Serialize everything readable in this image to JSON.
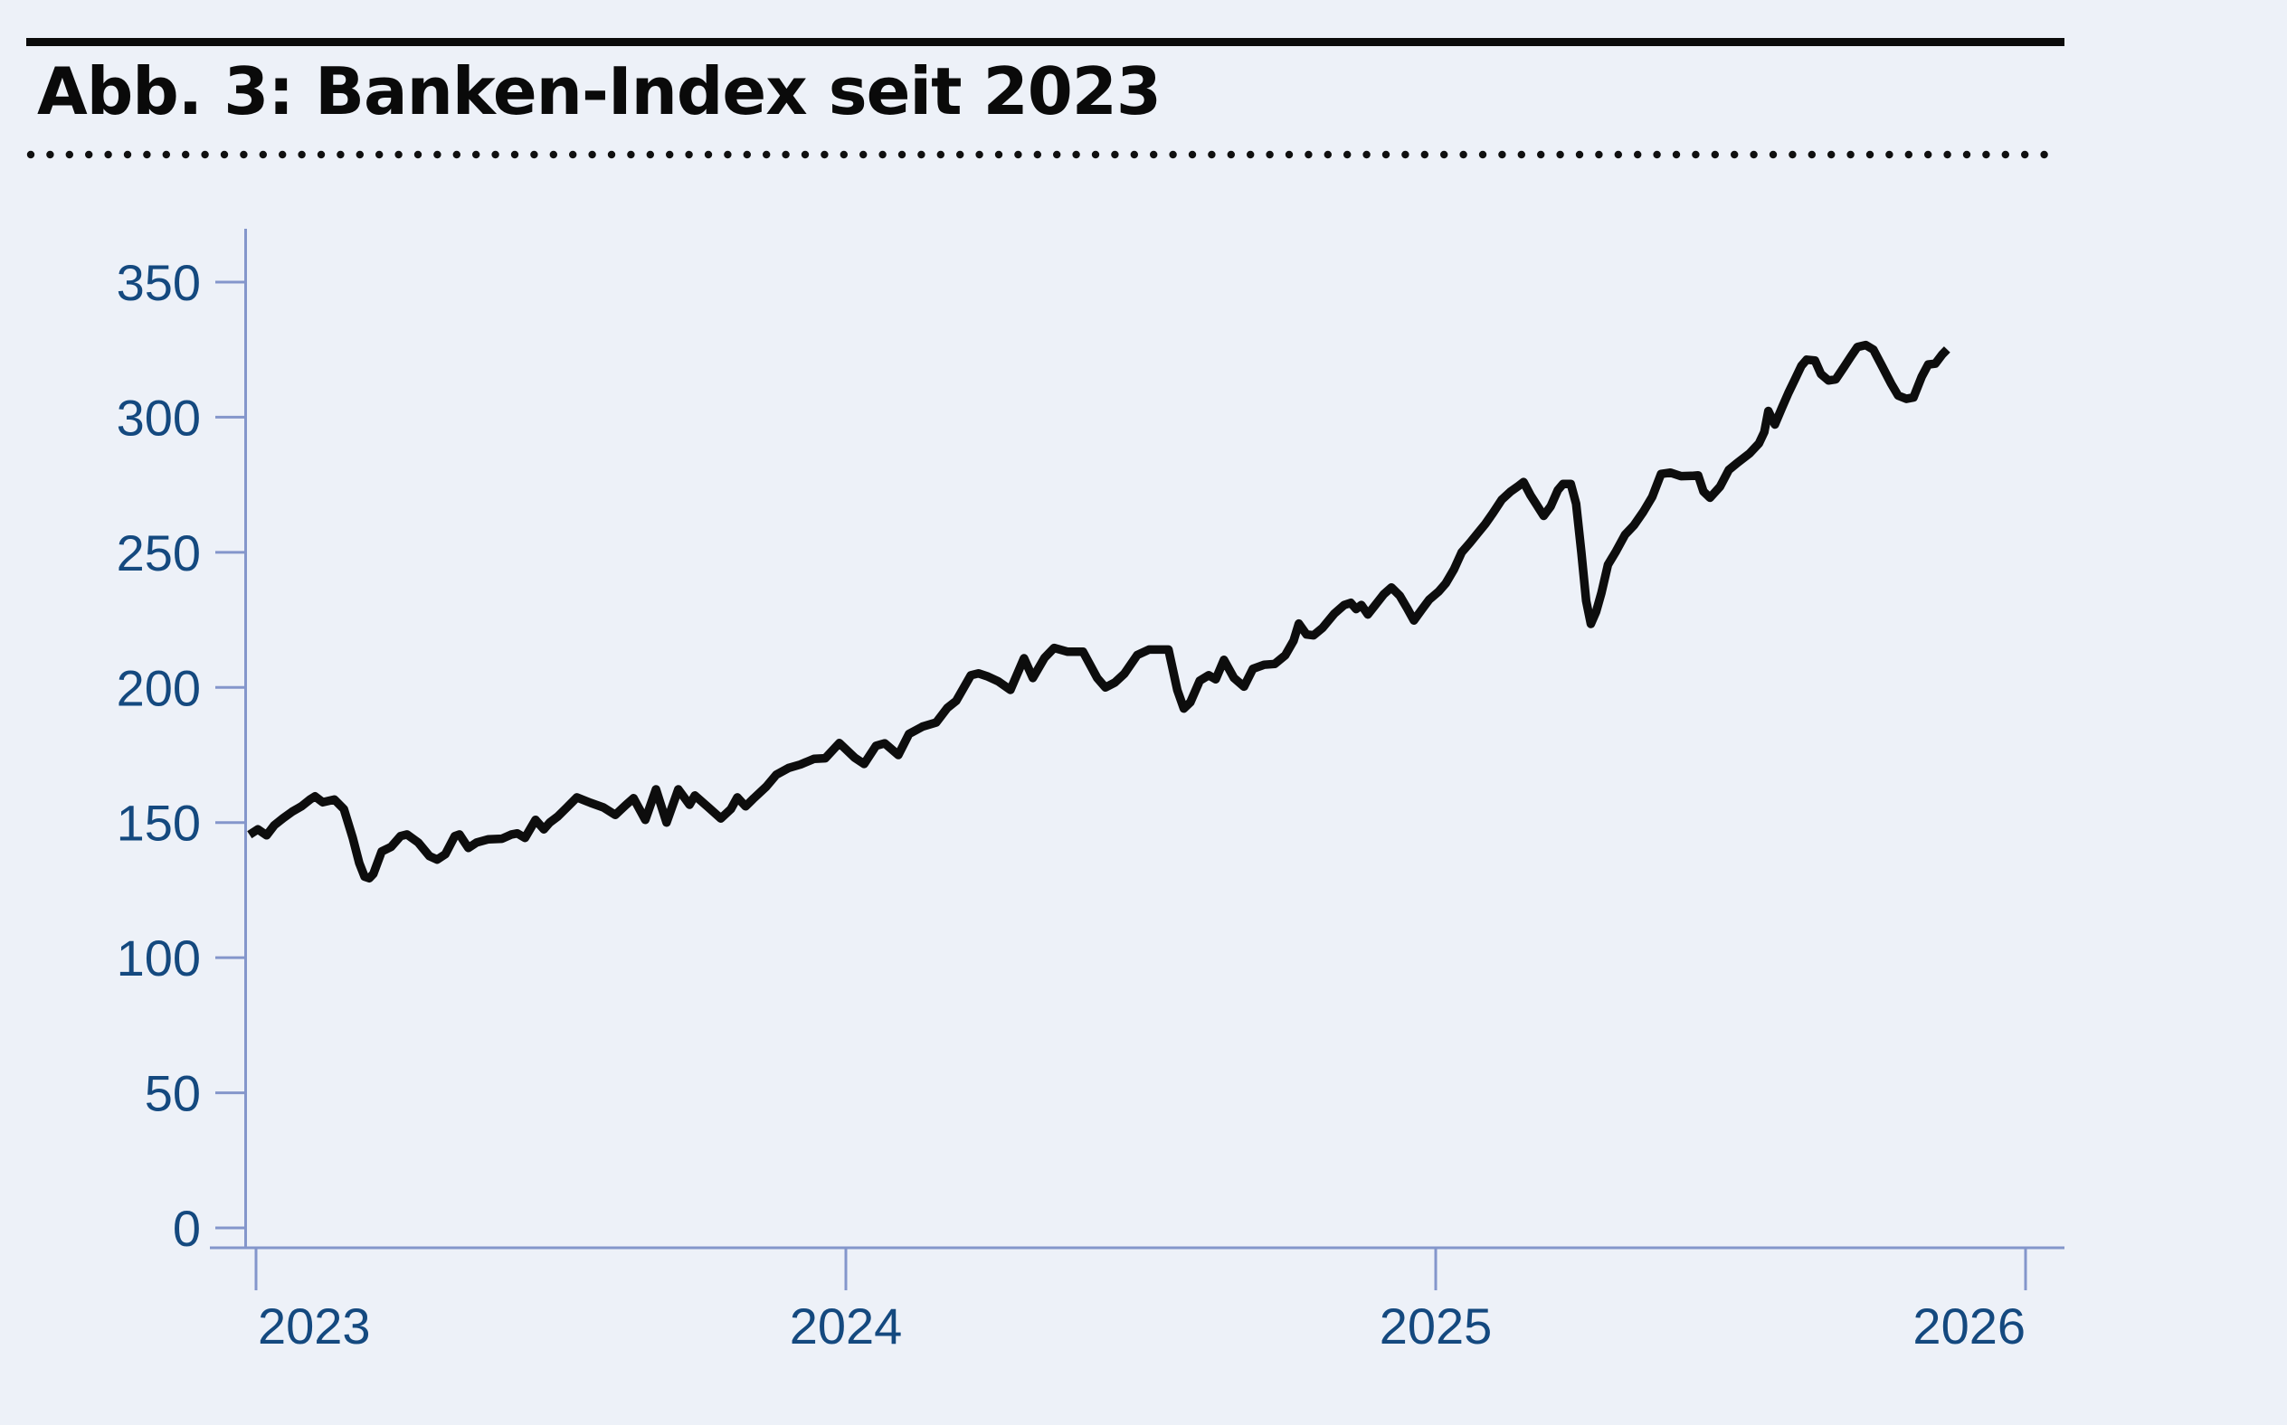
{
  "figure": {
    "title": "Abb. 3: Banken-Index seit 2023"
  },
  "colors": {
    "background": "#edf1f8",
    "rule": "#0b0b0b",
    "axis_line": "#8496CB",
    "tick_label": "#14497F",
    "series_line": "#0d0d0d"
  },
  "chart_data": {
    "type": "line",
    "title": "Abb. 3: Banken-Index seit 2023",
    "xlabel": "",
    "ylabel": "",
    "grid": false,
    "legend_position": "none",
    "x_ticks": [
      2023,
      2024,
      2025,
      2026
    ],
    "x_tick_labels": [
      "2023",
      "2024",
      "2025",
      "2026"
    ],
    "y_ticks": [
      0,
      50,
      100,
      150,
      200,
      250,
      300,
      350
    ],
    "y_tick_labels": [
      "0",
      "50",
      "100",
      "150",
      "200",
      "250",
      "300",
      "350"
    ],
    "ylim": [
      0,
      370
    ],
    "xlim": [
      2022.97,
      2026.08
    ],
    "series": [
      {
        "name": "Banken-Index",
        "color": "#0d0d0d",
        "points": [
          [
            2022.989,
            145.5
          ],
          [
            2023.003,
            147.5
          ],
          [
            2023.018,
            145.3
          ],
          [
            2023.031,
            149
          ],
          [
            2023.046,
            151.6
          ],
          [
            2023.061,
            154
          ],
          [
            2023.077,
            156
          ],
          [
            2023.092,
            158.6
          ],
          [
            2023.1,
            159.7
          ],
          [
            2023.113,
            157.5
          ],
          [
            2023.133,
            158.5
          ],
          [
            2023.149,
            155
          ],
          [
            2023.164,
            144.3
          ],
          [
            2023.175,
            135
          ],
          [
            2023.184,
            130
          ],
          [
            2023.192,
            129.4
          ],
          [
            2023.199,
            131
          ],
          [
            2023.213,
            139.3
          ],
          [
            2023.229,
            141
          ],
          [
            2023.245,
            145
          ],
          [
            2023.256,
            145.6
          ],
          [
            2023.275,
            142.6
          ],
          [
            2023.294,
            137.6
          ],
          [
            2023.307,
            136.3
          ],
          [
            2023.321,
            138.3
          ],
          [
            2023.337,
            145
          ],
          [
            2023.345,
            145.6
          ],
          [
            2023.36,
            140.6
          ],
          [
            2023.374,
            142.6
          ],
          [
            2023.394,
            143.8
          ],
          [
            2023.417,
            144
          ],
          [
            2023.433,
            145.6
          ],
          [
            2023.443,
            146
          ],
          [
            2023.456,
            144.3
          ],
          [
            2023.474,
            151
          ],
          [
            2023.488,
            147.5
          ],
          [
            2023.498,
            150
          ],
          [
            2023.512,
            152.3
          ],
          [
            2023.529,
            156
          ],
          [
            2023.544,
            159.3
          ],
          [
            2023.567,
            157.3
          ],
          [
            2023.589,
            155.6
          ],
          [
            2023.609,
            152.8
          ],
          [
            2023.627,
            156.5
          ],
          [
            2023.64,
            159
          ],
          [
            2023.66,
            151
          ],
          [
            2023.678,
            162.3
          ],
          [
            2023.696,
            150
          ],
          [
            2023.716,
            162.3
          ],
          [
            2023.735,
            156.6
          ],
          [
            2023.744,
            160
          ],
          [
            2023.765,
            156
          ],
          [
            2023.788,
            151.5
          ],
          [
            2023.805,
            155
          ],
          [
            2023.816,
            159.3
          ],
          [
            2023.83,
            156
          ],
          [
            2023.844,
            159
          ],
          [
            2023.865,
            163.3
          ],
          [
            2023.882,
            167.7
          ],
          [
            2023.903,
            170.2
          ],
          [
            2023.923,
            171.5
          ],
          [
            2023.946,
            173.6
          ],
          [
            2023.965,
            173.8
          ],
          [
            2023.989,
            179.4
          ],
          [
            2024.015,
            174
          ],
          [
            2024.031,
            171.7
          ],
          [
            2024.051,
            178.4
          ],
          [
            2024.066,
            179.3
          ],
          [
            2024.089,
            175
          ],
          [
            2024.107,
            182.8
          ],
          [
            2024.13,
            185.5
          ],
          [
            2024.153,
            187
          ],
          [
            2024.172,
            192.4
          ],
          [
            2024.187,
            195
          ],
          [
            2024.212,
            204.5
          ],
          [
            2024.225,
            205.2
          ],
          [
            2024.241,
            204
          ],
          [
            2024.258,
            202.3
          ],
          [
            2024.279,
            199.1
          ],
          [
            2024.302,
            210.8
          ],
          [
            2024.317,
            203.5
          ],
          [
            2024.337,
            211
          ],
          [
            2024.353,
            214.6
          ],
          [
            2024.376,
            213.2
          ],
          [
            2024.402,
            213.2
          ],
          [
            2024.426,
            203.5
          ],
          [
            2024.44,
            200
          ],
          [
            2024.456,
            201.8
          ],
          [
            2024.472,
            205
          ],
          [
            2024.494,
            212
          ],
          [
            2024.514,
            214
          ],
          [
            2024.547,
            214
          ],
          [
            2024.562,
            199
          ],
          [
            2024.573,
            192.2
          ],
          [
            2024.584,
            194.5
          ],
          [
            2024.6,
            202.5
          ],
          [
            2024.615,
            204.5
          ],
          [
            2024.627,
            203
          ],
          [
            2024.641,
            210.2
          ],
          [
            2024.658,
            203.5
          ],
          [
            2024.675,
            200.3
          ],
          [
            2024.69,
            206.9
          ],
          [
            2024.709,
            208.4
          ],
          [
            2024.727,
            208.7
          ],
          [
            2024.745,
            211.9
          ],
          [
            2024.759,
            217.3
          ],
          [
            2024.768,
            223.6
          ],
          [
            2024.781,
            219.6
          ],
          [
            2024.793,
            219.3
          ],
          [
            2024.808,
            222
          ],
          [
            2024.828,
            227.3
          ],
          [
            2024.845,
            230.5
          ],
          [
            2024.856,
            231.3
          ],
          [
            2024.865,
            229
          ],
          [
            2024.874,
            230.5
          ],
          [
            2024.885,
            227
          ],
          [
            2024.897,
            230.3
          ],
          [
            2024.912,
            234.5
          ],
          [
            2024.925,
            237
          ],
          [
            2024.939,
            234
          ],
          [
            2024.951,
            229.5
          ],
          [
            2024.963,
            224.8
          ],
          [
            2024.977,
            229
          ],
          [
            2024.989,
            232.5
          ],
          [
            2025.005,
            235.5
          ],
          [
            2025.017,
            238.5
          ],
          [
            2025.031,
            243.7
          ],
          [
            2025.044,
            250
          ],
          [
            2025.058,
            253.5
          ],
          [
            2025.071,
            257
          ],
          [
            2025.084,
            260.5
          ],
          [
            2025.097,
            264.5
          ],
          [
            2025.112,
            269.5
          ],
          [
            2025.127,
            272.5
          ],
          [
            2025.14,
            274.5
          ],
          [
            2025.149,
            276
          ],
          [
            2025.161,
            271
          ],
          [
            2025.17,
            268
          ],
          [
            2025.183,
            263.5
          ],
          [
            2025.195,
            267
          ],
          [
            2025.207,
            273
          ],
          [
            2025.216,
            275.3
          ],
          [
            2025.229,
            275.3
          ],
          [
            2025.238,
            268
          ],
          [
            2025.247,
            250
          ],
          [
            2025.255,
            232
          ],
          [
            2025.263,
            223.5
          ],
          [
            2025.272,
            228
          ],
          [
            2025.281,
            235
          ],
          [
            2025.292,
            245.4
          ],
          [
            2025.306,
            250.5
          ],
          [
            2025.321,
            256.5
          ],
          [
            2025.336,
            260
          ],
          [
            2025.352,
            265
          ],
          [
            2025.367,
            270.5
          ],
          [
            2025.382,
            279
          ],
          [
            2025.398,
            279.5
          ],
          [
            2025.416,
            278.2
          ],
          [
            2025.434,
            278.3
          ],
          [
            2025.445,
            278.5
          ],
          [
            2025.454,
            272.5
          ],
          [
            2025.465,
            270.2
          ],
          [
            2025.482,
            274.3
          ],
          [
            2025.497,
            280.5
          ],
          [
            2025.512,
            283.2
          ],
          [
            2025.532,
            286.6
          ],
          [
            2025.548,
            290.3
          ],
          [
            2025.557,
            294.5
          ],
          [
            2025.564,
            302.3
          ],
          [
            2025.575,
            297.3
          ],
          [
            2025.587,
            303.5
          ],
          [
            2025.598,
            309
          ],
          [
            2025.609,
            314
          ],
          [
            2025.62,
            319
          ],
          [
            2025.629,
            321.3
          ],
          [
            2025.643,
            321
          ],
          [
            2025.653,
            316
          ],
          [
            2025.666,
            313.6
          ],
          [
            2025.678,
            314
          ],
          [
            2025.692,
            318.5
          ],
          [
            2025.704,
            322.5
          ],
          [
            2025.715,
            326
          ],
          [
            2025.729,
            326.7
          ],
          [
            2025.742,
            325
          ],
          [
            2025.756,
            319.2
          ],
          [
            2025.772,
            312.5
          ],
          [
            2025.784,
            308
          ],
          [
            2025.798,
            306.8
          ],
          [
            2025.81,
            307.3
          ],
          [
            2025.824,
            315
          ],
          [
            2025.835,
            319.5
          ],
          [
            2025.847,
            319.8
          ],
          [
            2025.859,
            323.3
          ],
          [
            2025.867,
            325.1
          ]
        ]
      }
    ]
  }
}
